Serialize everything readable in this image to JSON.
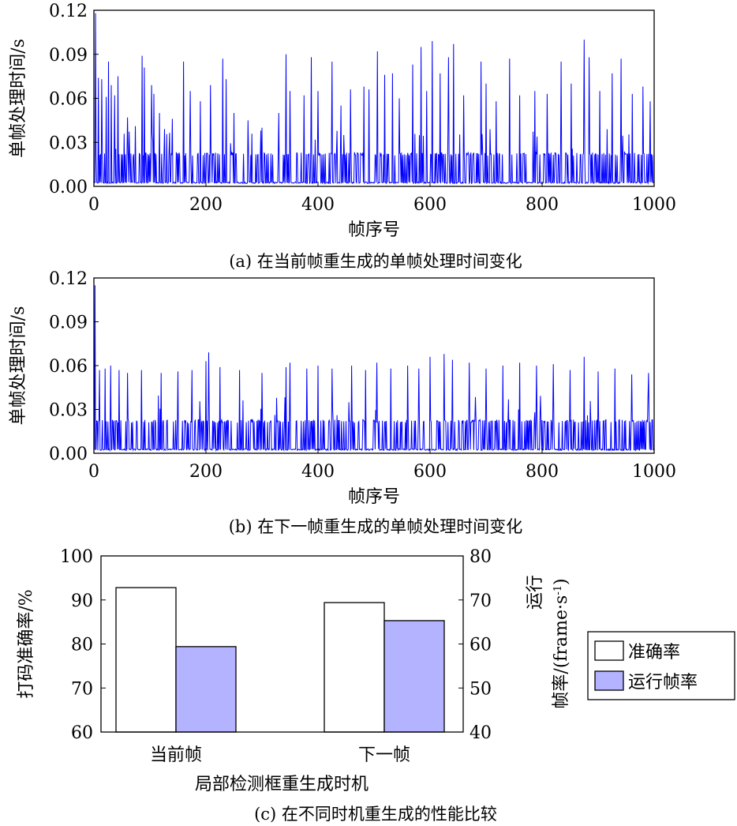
{
  "chart_data": [
    {
      "type": "line",
      "caption": "(a) 在当前帧重生成的单帧处理时间变化",
      "xlabel": "帧序号",
      "ylabel": "单帧处理时间/s",
      "xlim": [
        0,
        1000
      ],
      "ylim": [
        0,
        0.12
      ],
      "xticks": [
        "0",
        "200",
        "400",
        "600",
        "800",
        "1000"
      ],
      "yticks": [
        "0.00",
        "0.03",
        "0.06",
        "0.09",
        "0.12"
      ],
      "series_color": "#0000ff",
      "baseline_spike": 0.023,
      "baseline_low": 0.002,
      "peaks": [
        [
          3,
          0.118
        ],
        [
          8,
          0.074
        ],
        [
          14,
          0.073
        ],
        [
          22,
          0.061
        ],
        [
          26,
          0.085
        ],
        [
          31,
          0.069
        ],
        [
          37,
          0.062
        ],
        [
          43,
          0.075
        ],
        [
          60,
          0.047
        ],
        [
          74,
          0.041
        ],
        [
          86,
          0.089
        ],
        [
          90,
          0.081
        ],
        [
          103,
          0.069
        ],
        [
          107,
          0.063
        ],
        [
          117,
          0.05
        ],
        [
          140,
          0.046
        ],
        [
          160,
          0.085
        ],
        [
          172,
          0.065
        ],
        [
          190,
          0.058
        ],
        [
          208,
          0.069
        ],
        [
          230,
          0.087
        ],
        [
          236,
          0.073
        ],
        [
          250,
          0.05
        ],
        [
          275,
          0.045
        ],
        [
          300,
          0.04
        ],
        [
          330,
          0.05
        ],
        [
          343,
          0.09
        ],
        [
          350,
          0.065
        ],
        [
          375,
          0.062
        ],
        [
          388,
          0.088
        ],
        [
          400,
          0.065
        ],
        [
          425,
          0.085
        ],
        [
          441,
          0.055
        ],
        [
          458,
          0.066
        ],
        [
          482,
          0.068
        ],
        [
          491,
          0.066
        ],
        [
          506,
          0.092
        ],
        [
          519,
          0.076
        ],
        [
          533,
          0.077
        ],
        [
          545,
          0.06
        ],
        [
          569,
          0.083
        ],
        [
          584,
          0.095
        ],
        [
          594,
          0.065
        ],
        [
          604,
          0.099
        ],
        [
          618,
          0.077
        ],
        [
          633,
          0.088
        ],
        [
          642,
          0.097
        ],
        [
          660,
          0.062
        ],
        [
          691,
          0.085
        ],
        [
          700,
          0.07
        ],
        [
          718,
          0.058
        ],
        [
          742,
          0.087
        ],
        [
          760,
          0.062
        ],
        [
          787,
          0.065
        ],
        [
          809,
          0.063
        ],
        [
          834,
          0.085
        ],
        [
          852,
          0.07
        ],
        [
          875,
          0.1
        ],
        [
          884,
          0.088
        ],
        [
          903,
          0.065
        ],
        [
          925,
          0.077
        ],
        [
          941,
          0.087
        ],
        [
          961,
          0.063
        ],
        [
          980,
          0.068
        ],
        [
          993,
          0.058
        ]
      ]
    },
    {
      "type": "line",
      "caption": "(b) 在下一帧重生成的单帧处理时间变化",
      "xlabel": "帧序号",
      "ylabel": "单帧处理时间/s",
      "xlim": [
        0,
        1000
      ],
      "ylim": [
        0,
        0.12
      ],
      "xticks": [
        "0",
        "200",
        "400",
        "600",
        "800",
        "1000"
      ],
      "yticks": [
        "0.00",
        "0.03",
        "0.06",
        "0.09",
        "0.12"
      ],
      "series_color": "#0000ff",
      "baseline_spike": 0.023,
      "baseline_low": 0.002,
      "peaks": [
        [
          2,
          0.115
        ],
        [
          10,
          0.057
        ],
        [
          20,
          0.058
        ],
        [
          30,
          0.06
        ],
        [
          45,
          0.057
        ],
        [
          60,
          0.055
        ],
        [
          85,
          0.057
        ],
        [
          120,
          0.055
        ],
        [
          150,
          0.056
        ],
        [
          175,
          0.057
        ],
        [
          200,
          0.063
        ],
        [
          205,
          0.069
        ],
        [
          225,
          0.059
        ],
        [
          260,
          0.057
        ],
        [
          300,
          0.055
        ],
        [
          343,
          0.059
        ],
        [
          350,
          0.062
        ],
        [
          380,
          0.058
        ],
        [
          400,
          0.06
        ],
        [
          425,
          0.058
        ],
        [
          460,
          0.06
        ],
        [
          485,
          0.057
        ],
        [
          505,
          0.062
        ],
        [
          530,
          0.058
        ],
        [
          560,
          0.06
        ],
        [
          580,
          0.058
        ],
        [
          600,
          0.066
        ],
        [
          625,
          0.068
        ],
        [
          640,
          0.064
        ],
        [
          670,
          0.062
        ],
        [
          700,
          0.058
        ],
        [
          730,
          0.06
        ],
        [
          760,
          0.062
        ],
        [
          790,
          0.06
        ],
        [
          820,
          0.061
        ],
        [
          850,
          0.057
        ],
        [
          875,
          0.066
        ],
        [
          900,
          0.056
        ],
        [
          930,
          0.058
        ],
        [
          960,
          0.054
        ],
        [
          990,
          0.055
        ]
      ]
    },
    {
      "type": "bar",
      "caption": "(c) 在不同时机重生成的性能比较",
      "xlabel": "局部检测框重生成时机",
      "ylabel": "打码准确率/%",
      "ylabel_right_1": "运行",
      "ylabel_right_2": "帧率/(frame·s",
      "ylabel_right_sup": "-1",
      "ylabel_right_end": ")",
      "categories": [
        "当前帧",
        "下一帧"
      ],
      "ylim": [
        60,
        100
      ],
      "ylim_right": [
        40,
        80
      ],
      "yticks": [
        "60",
        "70",
        "80",
        "90",
        "100"
      ],
      "yticks_right": [
        "40",
        "50",
        "60",
        "70",
        "80"
      ],
      "legend_position": "right",
      "series": [
        {
          "name": "准确率",
          "axis": "left",
          "color": "#ffffff",
          "values": [
            92.8,
            89.4
          ]
        },
        {
          "name": "运行帧率",
          "axis": "right",
          "color": "#b3b3ff",
          "values": [
            59.4,
            65.3
          ]
        }
      ]
    }
  ]
}
